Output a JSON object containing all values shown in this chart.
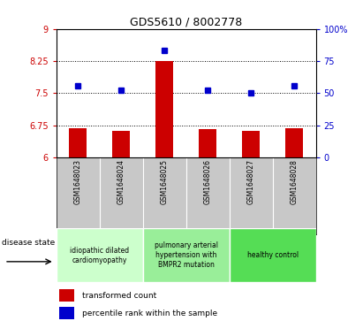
{
  "title": "GDS5610 / 8002778",
  "samples": [
    "GSM1648023",
    "GSM1648024",
    "GSM1648025",
    "GSM1648026",
    "GSM1648027",
    "GSM1648028"
  ],
  "red_values": [
    6.68,
    6.62,
    8.25,
    6.65,
    6.62,
    6.68
  ],
  "blue_values": [
    56,
    52,
    83,
    52,
    50,
    56
  ],
  "ylim_left": [
    6,
    9
  ],
  "ylim_right": [
    0,
    100
  ],
  "yticks_left": [
    6,
    6.75,
    7.5,
    8.25,
    9
  ],
  "yticks_right": [
    0,
    25,
    50,
    75,
    100
  ],
  "hlines": [
    6.75,
    7.5,
    8.25
  ],
  "bar_color": "#cc0000",
  "dot_color": "#0000cc",
  "groups": [
    {
      "label": "idiopathic dilated\ncardiomyopathy",
      "indices": [
        0,
        1
      ],
      "color": "#ccffcc"
    },
    {
      "label": "pulmonary arterial\nhypertension with\nBMPR2 mutation",
      "indices": [
        2,
        3
      ],
      "color": "#99ee99"
    },
    {
      "label": "healthy control",
      "indices": [
        4,
        5
      ],
      "color": "#55dd55"
    }
  ],
  "disease_state_label": "disease state",
  "legend_red": "transformed count",
  "legend_blue": "percentile rank within the sample",
  "tick_color_left": "#cc0000",
  "tick_color_right": "#0000cc",
  "bar_bottom": 6.0,
  "background_color": "#ffffff",
  "sample_bg": "#c8c8c8"
}
